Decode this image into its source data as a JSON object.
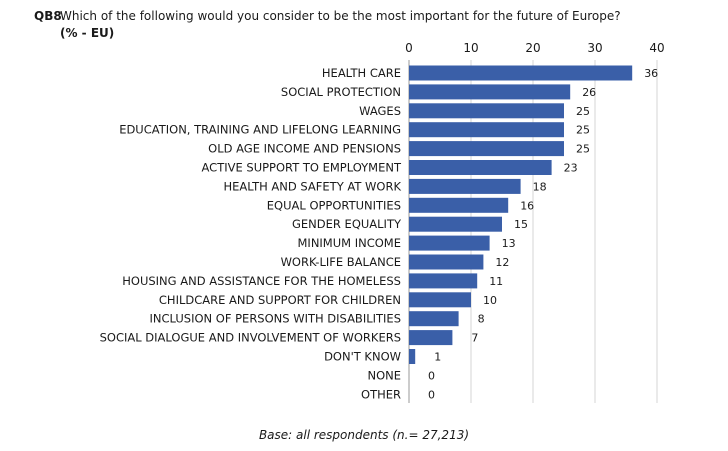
{
  "header": {
    "question_id": "QB8",
    "question_text": "Which of the following would you consider to be the most important for the future of Europe?",
    "unit": "(% - EU)"
  },
  "footer": {
    "base_note": "Base: all respondents (n.= 27,213)"
  },
  "chart_data": {
    "type": "bar",
    "orientation": "horizontal",
    "xlim": [
      0,
      40
    ],
    "ticks": [
      0,
      10,
      20,
      30,
      40
    ],
    "tick_position": "top",
    "grid": true,
    "bar_color": "#3a5fa8",
    "categories": [
      "HEALTH CARE",
      "SOCIAL PROTECTION",
      "WAGES",
      "EDUCATION, TRAINING AND LIFELONG LEARNING",
      "OLD AGE INCOME AND PENSIONS",
      "ACTIVE SUPPORT TO EMPLOYMENT",
      "HEALTH AND SAFETY AT WORK",
      "EQUAL OPPORTUNITIES",
      "GENDER EQUALITY",
      "MINIMUM INCOME",
      "WORK-LIFE BALANCE",
      "HOUSING AND ASSISTANCE FOR THE HOMELESS",
      "CHILDCARE AND SUPPORT FOR CHILDREN",
      "INCLUSION OF PERSONS WITH DISABILITIES",
      "SOCIAL DIALOGUE AND INVOLVEMENT OF WORKERS",
      "DON'T KNOW",
      "NONE",
      "OTHER"
    ],
    "values": [
      36,
      26,
      25,
      25,
      25,
      23,
      18,
      16,
      15,
      13,
      12,
      11,
      10,
      8,
      7,
      1,
      0,
      0
    ]
  }
}
